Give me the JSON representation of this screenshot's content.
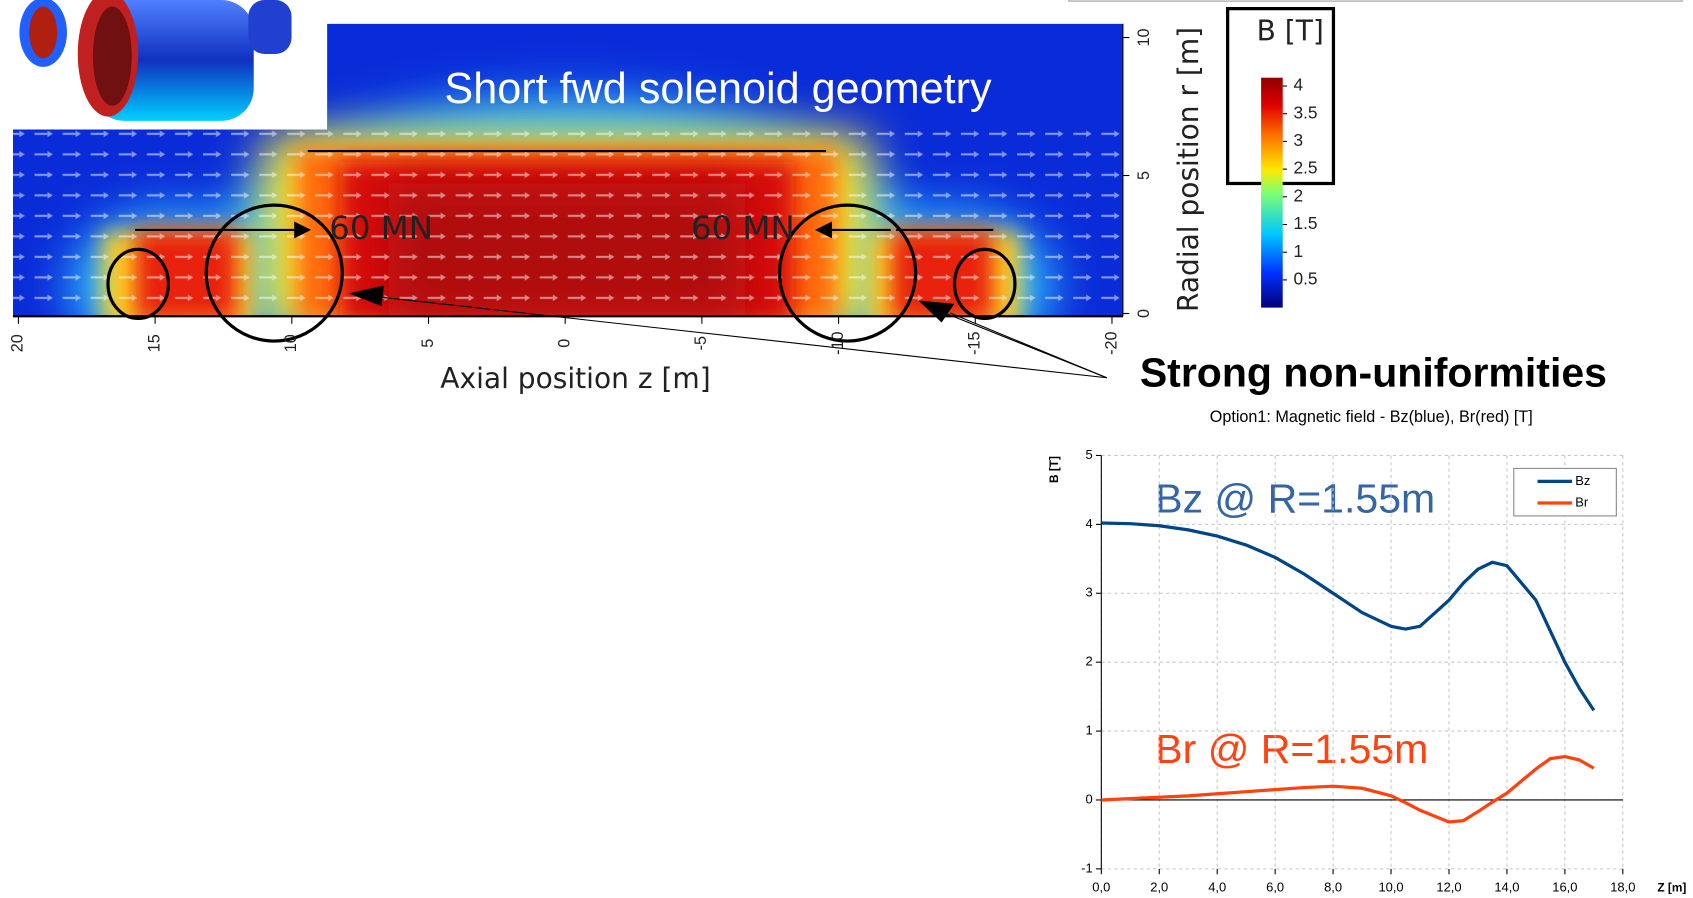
{
  "field_map": {
    "title": "Short fwd solenoid geometry",
    "force_labels": [
      "60 MN",
      "60 MN"
    ],
    "z_axis": {
      "label": "Axial position z [m]",
      "lim": [
        20.2,
        -20.4
      ],
      "ticks": [
        20,
        15,
        10,
        5,
        0,
        -5,
        -10,
        -15,
        -20
      ]
    },
    "r_axis": {
      "label": "Radial position r [m]",
      "lim": [
        -0.1,
        10.5
      ],
      "ticks": [
        0,
        5,
        10
      ]
    },
    "colorbar": {
      "title": "B [T]",
      "lim": [
        0,
        4.15
      ],
      "ticks": [
        4,
        3.5,
        3,
        2.5,
        2,
        1.5,
        1,
        0.5
      ]
    }
  },
  "callout": "Strong non-uniformities",
  "chart_data": {
    "type": "line",
    "title": "Option1: Magnetic field - Bz(blue), Br(red) [T]",
    "y_label": "B [T]",
    "x_label": "Z [m]",
    "x": [
      0,
      1,
      2,
      3,
      4,
      5,
      6,
      7,
      8,
      9,
      10,
      10.5,
      11,
      12,
      12.5,
      13,
      13.5,
      14,
      15,
      15.5,
      16,
      16.5,
      17
    ],
    "series": [
      {
        "name": "Bz",
        "color": "#004586",
        "values": [
          4.02,
          4.01,
          3.98,
          3.92,
          3.83,
          3.7,
          3.52,
          3.28,
          3.0,
          2.72,
          2.52,
          2.48,
          2.52,
          2.9,
          3.15,
          3.35,
          3.45,
          3.4,
          2.9,
          2.45,
          2.0,
          1.62,
          1.3
        ]
      },
      {
        "name": "Br",
        "color": "#ff420e",
        "values": [
          0,
          0.02,
          0.04,
          0.06,
          0.09,
          0.12,
          0.15,
          0.18,
          0.2,
          0.17,
          0.06,
          -0.04,
          -0.15,
          -0.32,
          -0.3,
          -0.17,
          -0.03,
          0.1,
          0.45,
          0.6,
          0.63,
          0.58,
          0.46
        ]
      }
    ],
    "xlim": [
      0,
      18
    ],
    "ylim": [
      -1,
      5
    ],
    "xticks": [
      {
        "value": 0,
        "label": "0,0"
      },
      {
        "value": 2,
        "label": "2,0"
      },
      {
        "value": 4,
        "label": "4,0"
      },
      {
        "value": 6,
        "label": "6,0"
      },
      {
        "value": 8,
        "label": "8,0"
      },
      {
        "value": 10,
        "label": "10,0"
      },
      {
        "value": 12,
        "label": "12,0"
      },
      {
        "value": 14,
        "label": "14,0"
      },
      {
        "value": 16,
        "label": "16,0"
      },
      {
        "value": 18,
        "label": "18,0"
      }
    ],
    "yticks": [
      -1,
      0,
      1,
      2,
      3,
      4,
      5
    ],
    "grid": true,
    "legend": "upper right",
    "annotations": [
      "Bz @ R=1.55m",
      "Br @ R=1.55m"
    ]
  }
}
